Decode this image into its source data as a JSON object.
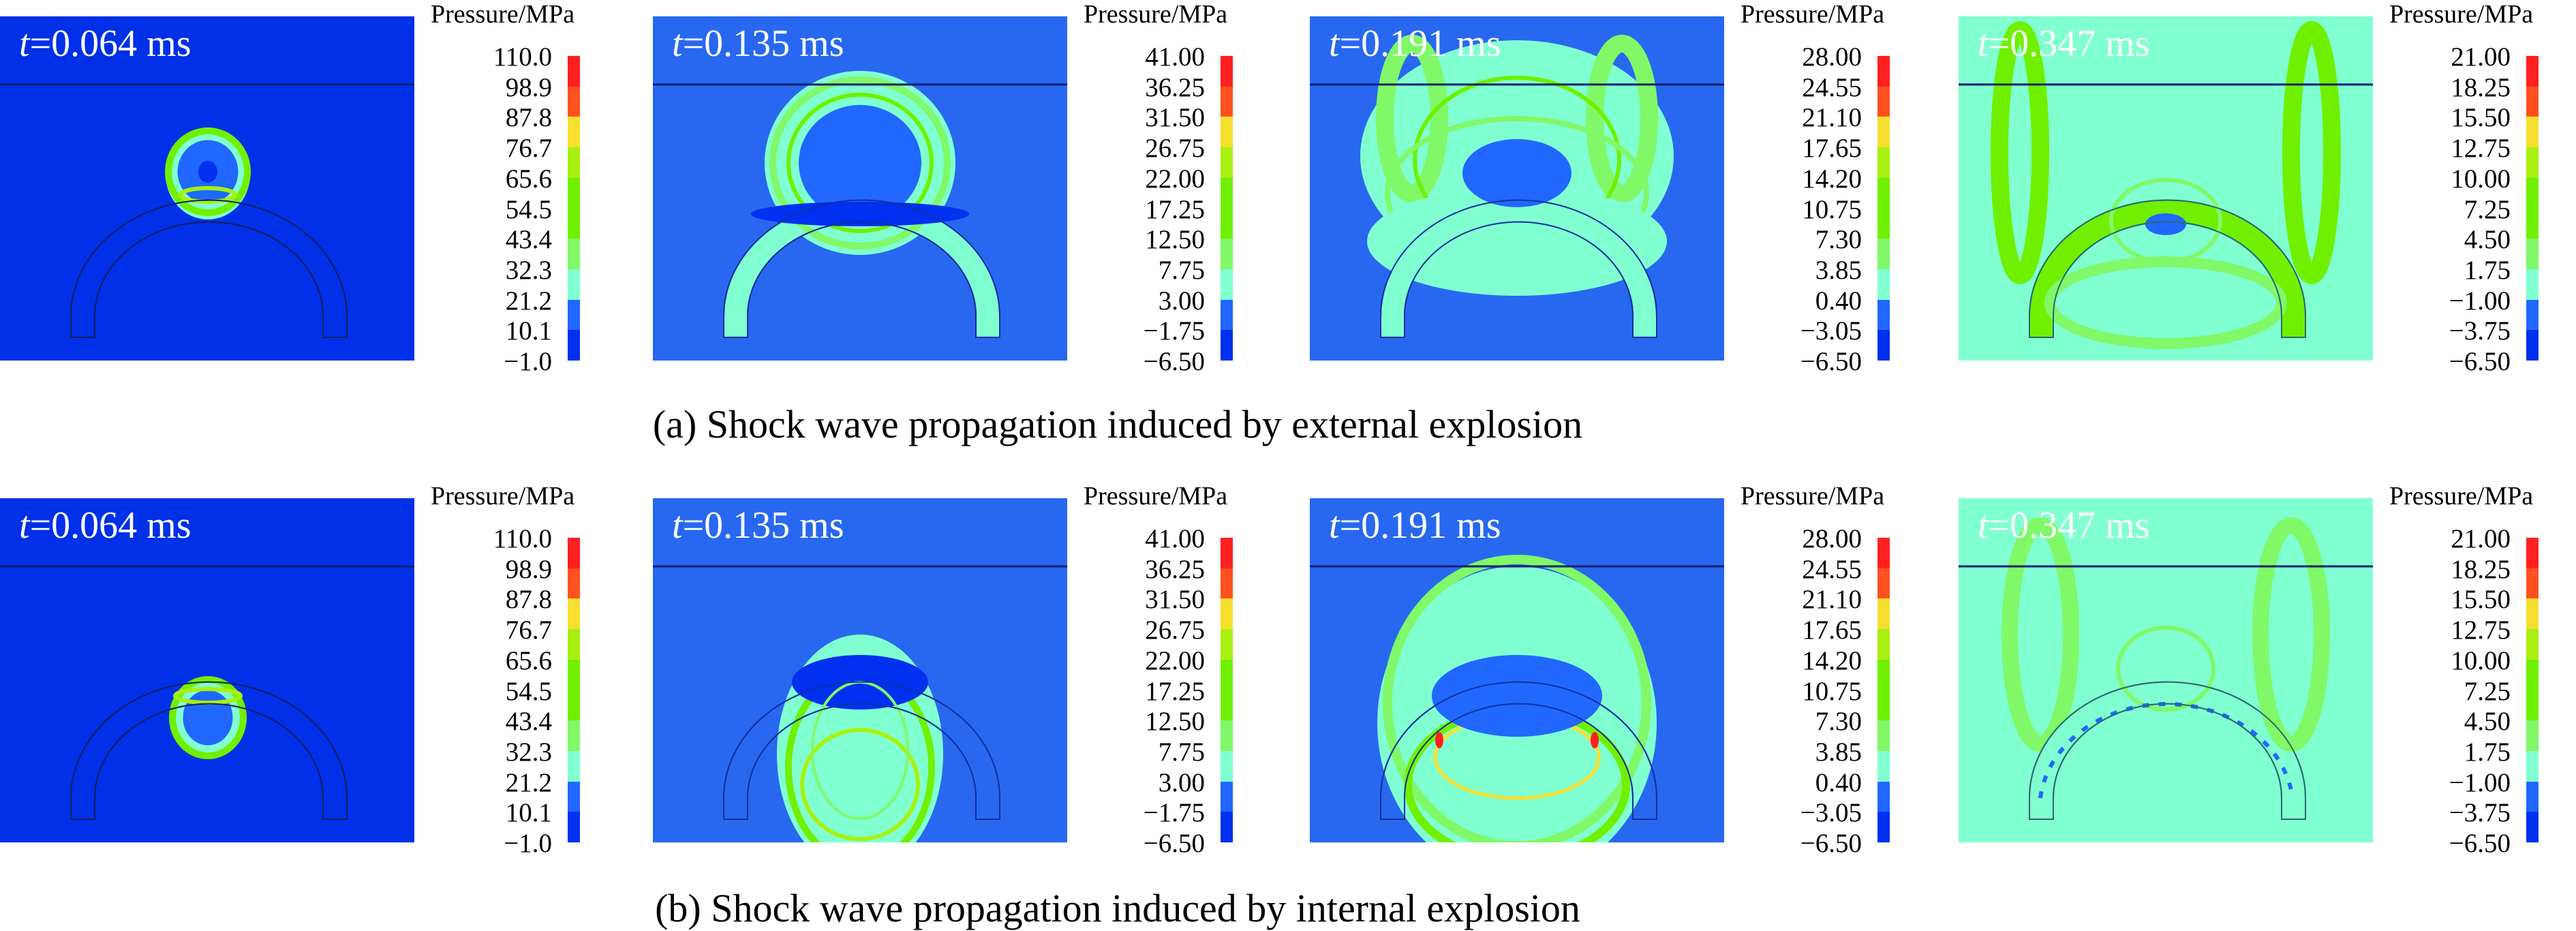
{
  "figure": {
    "colorbar_colors": [
      "#ff2020",
      "#ff5020",
      "#f5e030",
      "#a8f010",
      "#70f000",
      "#70f000",
      "#80f868",
      "#80ffd0",
      "#2068ff",
      "#0030f0"
    ],
    "rows": [
      {
        "caption": "(a) Shock wave propagation induced by external explosion",
        "scenario": "external",
        "panels": [
          {
            "t_symbol": "t",
            "time": "=0.064 ms",
            "legend_title": "Pressure/MPa",
            "legend_values": [
              "110.0",
              "98.9",
              "87.8",
              "76.7",
              "65.6",
              "54.5",
              "43.4",
              "32.3",
              "21.2",
              "10.1",
              "−1.0"
            ],
            "background": "#0030e8"
          },
          {
            "t_symbol": "t",
            "time": "=0.135 ms",
            "legend_title": "Pressure/MPa",
            "legend_values": [
              "41.00",
              "36.25",
              "31.50",
              "26.75",
              "22.00",
              "17.25",
              "12.50",
              "7.75",
              "3.00",
              "−1.75",
              "−6.50"
            ],
            "background": "#2868f0"
          },
          {
            "t_symbol": "t",
            "time": "=0.191 ms",
            "legend_title": "Pressure/MPa",
            "legend_values": [
              "28.00",
              "24.55",
              "21.10",
              "17.65",
              "14.20",
              "10.75",
              "7.30",
              "3.85",
              "0.40",
              "−3.05",
              "−6.50"
            ],
            "background": "#2868f0"
          },
          {
            "t_symbol": "t",
            "time": "=0.347 ms",
            "legend_title": "Pressure/MPa",
            "legend_values": [
              "21.00",
              "18.25",
              "15.50",
              "12.75",
              "10.00",
              "7.25",
              "4.50",
              "1.75",
              "−1.00",
              "−3.75",
              "−6.50"
            ],
            "background": "#80ffd0"
          }
        ]
      },
      {
        "caption": "(b) Shock wave propagation induced by internal explosion",
        "scenario": "internal",
        "panels": [
          {
            "t_symbol": "t",
            "time": "=0.064 ms",
            "legend_title": "Pressure/MPa",
            "legend_values": [
              "110.0",
              "98.9",
              "87.8",
              "76.7",
              "65.6",
              "54.5",
              "43.4",
              "32.3",
              "21.2",
              "10.1",
              "−1.0"
            ],
            "background": "#0030e8"
          },
          {
            "t_symbol": "t",
            "time": "=0.135 ms",
            "legend_title": "Pressure/MPa",
            "legend_values": [
              "41.00",
              "36.25",
              "31.50",
              "26.75",
              "22.00",
              "17.25",
              "12.50",
              "7.75",
              "3.00",
              "−1.75",
              "−6.50"
            ],
            "background": "#2868f0"
          },
          {
            "t_symbol": "t",
            "time": "=0.191 ms",
            "legend_title": "Pressure/MPa",
            "legend_values": [
              "28.00",
              "24.55",
              "21.10",
              "17.65",
              "14.20",
              "10.75",
              "7.30",
              "3.85",
              "0.40",
              "−3.05",
              "−6.50"
            ],
            "background": "#2868f0"
          },
          {
            "t_symbol": "t",
            "time": "=0.347 ms",
            "legend_title": "Pressure/MPa",
            "legend_values": [
              "21.00",
              "18.25",
              "15.50",
              "12.75",
              "10.00",
              "7.25",
              "4.50",
              "1.75",
              "−1.00",
              "−3.75",
              "−6.50"
            ],
            "background": "#80ffd0"
          }
        ]
      }
    ]
  }
}
